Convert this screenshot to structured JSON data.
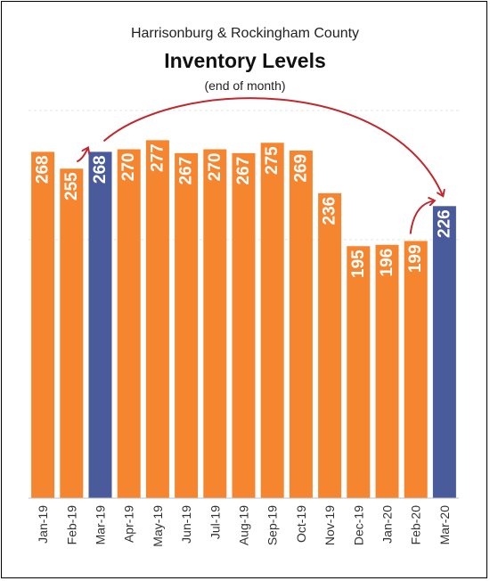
{
  "chart_data": {
    "type": "bar",
    "title": "Inventory Levels",
    "subtitle": "Harrisonburg & Rockingham County",
    "note": "(end of month)",
    "categories": [
      "Jan-19",
      "Feb-19",
      "Mar-19",
      "Apr-19",
      "May-19",
      "Jun-19",
      "Jul-19",
      "Aug-19",
      "Sep-19",
      "Oct-19",
      "Nov-19",
      "Dec-19",
      "Jan-20",
      "Feb-20",
      "Mar-20"
    ],
    "values": [
      268,
      255,
      268,
      270,
      277,
      267,
      270,
      267,
      275,
      269,
      236,
      195,
      196,
      199,
      226
    ],
    "highlighted": [
      "Mar-19",
      "Mar-20"
    ],
    "ylim": [
      0,
      300
    ],
    "xlabel": "",
    "ylabel": "",
    "grid": true,
    "colors": {
      "bar": "#F5862F",
      "highlight": "#4A5B9B",
      "label": "#ffffff",
      "arrow": "#C0282E",
      "grid": "#e6e6e6"
    }
  }
}
